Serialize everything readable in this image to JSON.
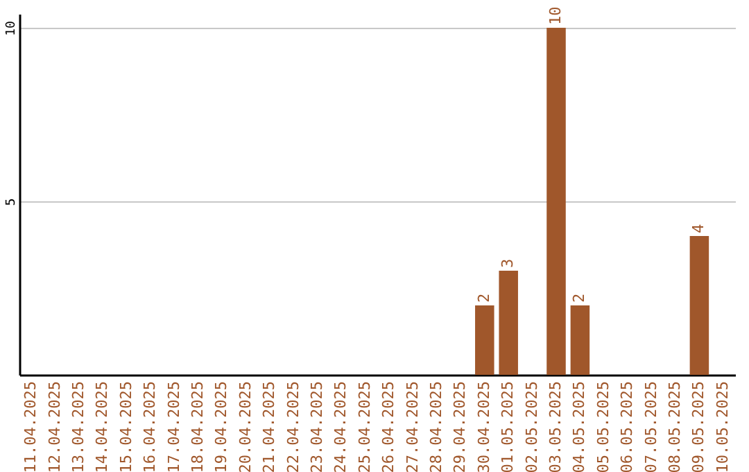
{
  "chart_data": {
    "type": "bar",
    "categories": [
      "11.04.2025",
      "12.04.2025",
      "13.04.2025",
      "14.04.2025",
      "15.04.2025",
      "16.04.2025",
      "17.04.2025",
      "18.04.2025",
      "19.04.2025",
      "20.04.2025",
      "21.04.2025",
      "22.04.2025",
      "23.04.2025",
      "24.04.2025",
      "25.04.2025",
      "26.04.2025",
      "27.04.2025",
      "28.04.2025",
      "29.04.2025",
      "30.04.2025",
      "01.05.2025",
      "02.05.2025",
      "03.05.2025",
      "04.05.2025",
      "05.05.2025",
      "06.05.2025",
      "07.05.2025",
      "08.05.2025",
      "09.05.2025",
      "10.05.2025"
    ],
    "values": [
      0,
      0,
      0,
      0,
      0,
      0,
      0,
      0,
      0,
      0,
      0,
      0,
      0,
      0,
      0,
      0,
      0,
      0,
      0,
      2,
      3,
      0,
      10,
      2,
      0,
      0,
      0,
      0,
      4,
      0
    ],
    "value_labels": [
      null,
      null,
      null,
      null,
      null,
      null,
      null,
      null,
      null,
      null,
      null,
      null,
      null,
      null,
      null,
      null,
      null,
      null,
      null,
      "2",
      "3",
      null,
      "10",
      "2",
      null,
      null,
      null,
      null,
      "4",
      null
    ],
    "color": "#a0572b",
    "ylim": [
      0,
      10.4
    ],
    "yticks": [
      5,
      10
    ],
    "grid": "y"
  }
}
